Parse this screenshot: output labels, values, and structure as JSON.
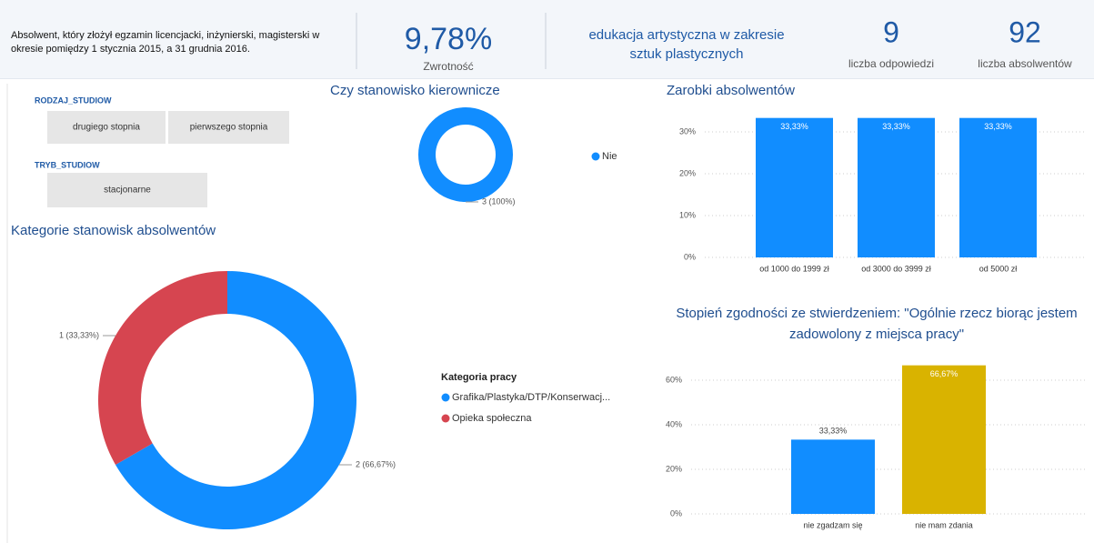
{
  "header": {
    "description": "Absolwent, który złożył egzamin licencjacki, inżynierski, magisterski w okresie pomiędzy 1  stycznia 2015, a 31 grudnia 2016.",
    "kpi": {
      "value": "9,78%",
      "label": "Zwrotność"
    },
    "field": "edukacja artystyczna w zakresie sztuk plastycznych",
    "responses": {
      "value": 9,
      "label": "liczba odpowiedzi"
    },
    "graduates": {
      "value": 92,
      "label": "liczba absolwentów"
    }
  },
  "slicers": [
    {
      "title": "RODZAJ_STUDIOW",
      "options": [
        "drugiego stopnia",
        "pierwszego stopnia"
      ]
    },
    {
      "title": "TRYB_STUDIOW",
      "options": [
        "stacjonarne"
      ]
    }
  ],
  "chart_data": [
    {
      "type": "donut",
      "title": "Czy stanowisko kierownicze",
      "categories": [
        "Nie"
      ],
      "values": [
        3
      ],
      "value_labels": [
        "3 (100%)"
      ],
      "colors": [
        "#118dff"
      ]
    },
    {
      "type": "donut",
      "title": "Kategorie stanowisk absolwentów",
      "legend_title": "Kategoria pracy",
      "categories": [
        "Grafika/Plastyka/DTP/Konserwacj...",
        "Opieka społeczna"
      ],
      "values": [
        2,
        1
      ],
      "value_labels": [
        "2 (66,67%)",
        "1 (33,33%)"
      ],
      "colors": [
        "#118dff",
        "#d64550"
      ]
    },
    {
      "type": "bar",
      "title": "Zarobki absolwentów",
      "categories": [
        "od 1000 do 1999 zł",
        "od 3000 do 3999 zł",
        "od 5000 zł"
      ],
      "values": [
        33.33,
        33.33,
        33.33
      ],
      "value_labels": [
        "33,33%",
        "33,33%",
        "33,33%"
      ],
      "colors": [
        "#118dff",
        "#118dff",
        "#118dff"
      ],
      "ylim": [
        0,
        34
      ],
      "yticks": [
        {
          "value": 0,
          "label": "0%"
        },
        {
          "value": 10,
          "label": "10%"
        },
        {
          "value": 20,
          "label": "20%"
        },
        {
          "value": 30,
          "label": "30%"
        }
      ],
      "grid": true
    },
    {
      "type": "bar",
      "title": "Stopień zgodności ze stwierdzeniem: \"Ogólnie rzecz biorąc jestem zadowolony z miejsca pracy\"",
      "categories": [
        "nie zgadzam się",
        "nie mam zdania"
      ],
      "values": [
        33.33,
        66.67
      ],
      "value_labels": [
        "33,33%",
        "66,67%"
      ],
      "colors": [
        "#118dff",
        "#d9b300"
      ],
      "ylim": [
        0,
        68
      ],
      "yticks": [
        {
          "value": 0,
          "label": "0%"
        },
        {
          "value": 20,
          "label": "20%"
        },
        {
          "value": 40,
          "label": "40%"
        },
        {
          "value": 60,
          "label": "60%"
        }
      ],
      "grid": true
    }
  ]
}
